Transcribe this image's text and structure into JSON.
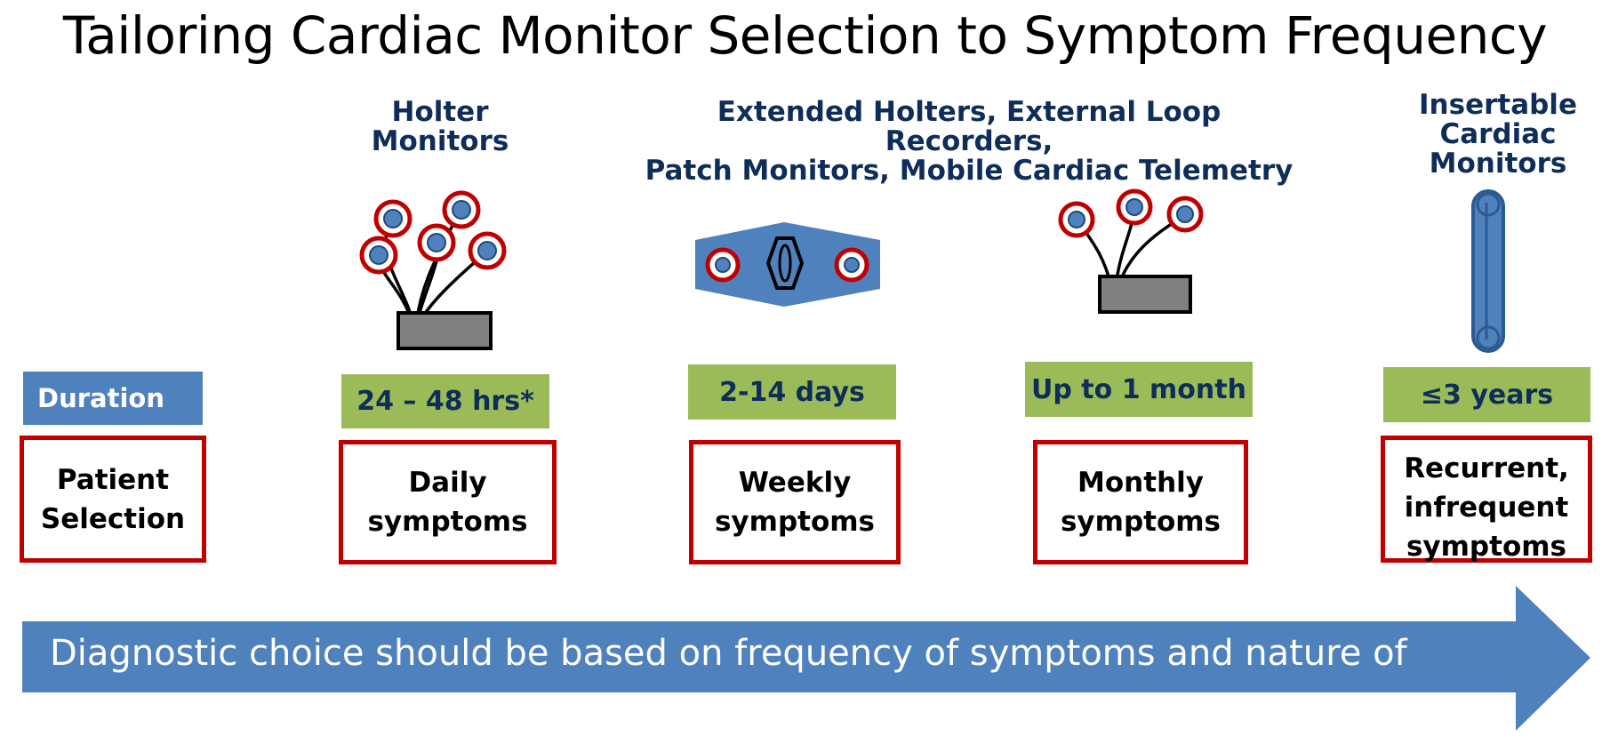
{
  "title": "Tailoring Cardiac Monitor Selection to Symptom Frequency",
  "devices": {
    "holter": "Holter\nMonitors",
    "extended": "Extended Holters, External Loop Recorders,\nPatch Monitors, Mobile Cardiac Telemetry",
    "insertable": "Insertable\nCardiac\nMonitors"
  },
  "duration_label": "Duration",
  "durations": [
    "24 – 48 hrs*",
    "2-14 days",
    "Up to 1 month",
    "≤3 years"
  ],
  "patient_selection": "Patient\nSelection",
  "symptoms": [
    "Daily\nsymptoms",
    "Weekly\nsymptoms",
    "Monthly\nsymptoms",
    "Recurrent,\ninfrequent\nsymptoms"
  ],
  "arrow_text": "Diagnostic choice should be based on frequency of symptoms and nature of",
  "colors": {
    "navy": "#0f2d59",
    "green": "#9bbb59",
    "blue": "#4f81bd",
    "red": "#c00000",
    "gray": "#808080"
  }
}
